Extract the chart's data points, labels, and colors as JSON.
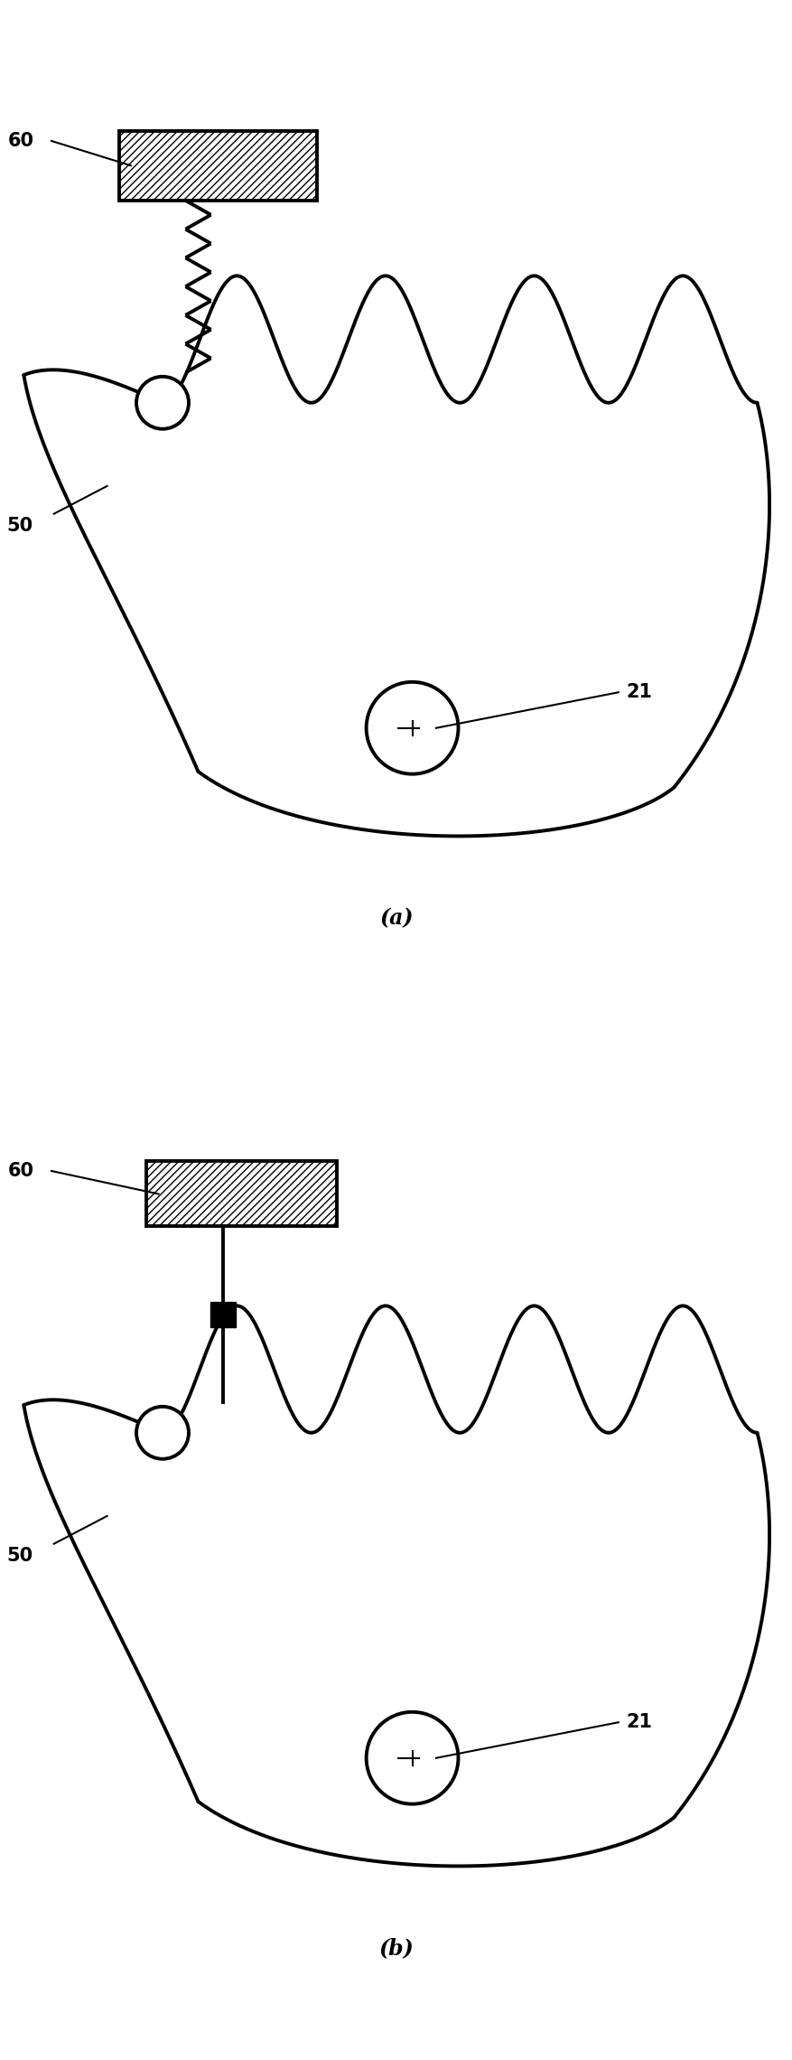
{
  "fig_width": 8.78,
  "fig_height": 22.8,
  "bg_color": "#ffffff",
  "line_color": "#000000",
  "label_60": "60",
  "label_50": "50",
  "label_21": "21",
  "lw_main": 2.8,
  "lw_thin": 1.5,
  "panel_a_label": "(a)",
  "panel_b_label": "(b)"
}
